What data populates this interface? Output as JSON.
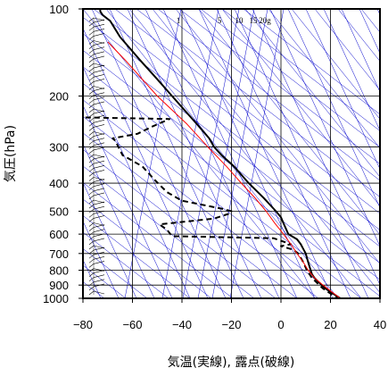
{
  "chart_data": {
    "type": "line",
    "chart_kind": "skew-T log-P emagram",
    "xlabel": "気温(実線), 露点(破線)",
    "ylabel": "気圧(hPa)",
    "xlim": [
      -80,
      40
    ],
    "ylim": [
      1000,
      100
    ],
    "y_scale": "log",
    "x_ticks": [
      -80,
      -60,
      -40,
      -20,
      0,
      20,
      40
    ],
    "y_ticks": [
      100,
      200,
      300,
      400,
      500,
      600,
      700,
      800,
      900,
      1000
    ],
    "grid": true,
    "mixing_ratio_labels": [
      "1",
      "5",
      "10",
      "15",
      "20g"
    ],
    "colors": {
      "temperature": "#000000",
      "dewpoint": "#000000",
      "parcel": "#ff0000",
      "guides": "#0000cc",
      "grid": "#000000"
    },
    "series": [
      {
        "line_style": "solid",
        "points": [
          {
            "p": 1000,
            "t": 24
          },
          {
            "p": 975,
            "t": 22
          },
          {
            "p": 950,
            "t": 20
          },
          {
            "p": 925,
            "t": 18
          },
          {
            "p": 900,
            "t": 16.5
          },
          {
            "p": 875,
            "t": 15
          },
          {
            "p": 850,
            "t": 13.5
          },
          {
            "p": 825,
            "t": 12.5
          },
          {
            "p": 800,
            "t": 12
          },
          {
            "p": 775,
            "t": 11.5
          },
          {
            "p": 750,
            "t": 11
          },
          {
            "p": 725,
            "t": 10.5
          },
          {
            "p": 700,
            "t": 10
          },
          {
            "p": 675,
            "t": 9
          },
          {
            "p": 650,
            "t": 8
          },
          {
            "p": 625,
            "t": 6.5
          },
          {
            "p": 600,
            "t": 3
          },
          {
            "p": 575,
            "t": 2
          },
          {
            "p": 550,
            "t": 1
          },
          {
            "p": 525,
            "t": 0
          },
          {
            "p": 500,
            "t": -2
          },
          {
            "p": 450,
            "t": -7
          },
          {
            "p": 400,
            "t": -13
          },
          {
            "p": 350,
            "t": -19
          },
          {
            "p": 320,
            "t": -24
          },
          {
            "p": 300,
            "t": -27
          },
          {
            "p": 280,
            "t": -29
          },
          {
            "p": 250,
            "t": -34
          },
          {
            "p": 200,
            "t": -44
          },
          {
            "p": 175,
            "t": -50
          },
          {
            "p": 150,
            "t": -57
          },
          {
            "p": 125,
            "t": -65
          },
          {
            "p": 110,
            "t": -69
          },
          {
            "p": 105,
            "t": -72
          },
          {
            "p": 102,
            "t": -73
          },
          {
            "p": 100,
            "t": -73
          }
        ]
      },
      {
        "line_style": "dashed",
        "points": [
          {
            "p": 1000,
            "t": 24
          },
          {
            "p": 975,
            "t": 21
          },
          {
            "p": 950,
            "t": 19
          },
          {
            "p": 925,
            "t": 17
          },
          {
            "p": 900,
            "t": 15.5
          },
          {
            "p": 875,
            "t": 14
          },
          {
            "p": 850,
            "t": 12.5
          },
          {
            "p": 800,
            "t": 10.5
          },
          {
            "p": 750,
            "t": 9
          },
          {
            "p": 700,
            "t": 7
          },
          {
            "p": 680,
            "t": 5
          },
          {
            "p": 660,
            "t": 0
          },
          {
            "p": 650,
            "t": 4
          },
          {
            "p": 620,
            "t": -3
          },
          {
            "p": 610,
            "t": -44
          },
          {
            "p": 580,
            "t": -46
          },
          {
            "p": 555,
            "t": -49
          },
          {
            "p": 530,
            "t": -27
          },
          {
            "p": 510,
            "t": -21
          },
          {
            "p": 500,
            "t": -20
          },
          {
            "p": 490,
            "t": -24
          },
          {
            "p": 460,
            "t": -40
          },
          {
            "p": 430,
            "t": -46
          },
          {
            "p": 390,
            "t": -51
          },
          {
            "p": 350,
            "t": -56
          },
          {
            "p": 320,
            "t": -64
          },
          {
            "p": 285,
            "t": -67
          },
          {
            "p": 280,
            "t": -68
          },
          {
            "p": 270,
            "t": -58
          },
          {
            "p": 255,
            "t": -52
          },
          {
            "p": 240,
            "t": -45
          },
          {
            "p": 237,
            "t": -81
          }
        ]
      },
      {
        "line_style": "solid",
        "color": "#ff0000",
        "points": [
          {
            "p": 1000,
            "t": 24
          },
          {
            "p": 950,
            "t": 20.5
          },
          {
            "p": 900,
            "t": 17
          },
          {
            "p": 850,
            "t": 13.5
          },
          {
            "p": 800,
            "t": 11
          },
          {
            "p": 750,
            "t": 9
          },
          {
            "p": 700,
            "t": 6.5
          },
          {
            "p": 650,
            "t": 4
          },
          {
            "p": 600,
            "t": 1
          },
          {
            "p": 550,
            "t": -2.5
          },
          {
            "p": 500,
            "t": -6
          },
          {
            "p": 450,
            "t": -10.5
          },
          {
            "p": 400,
            "t": -16
          },
          {
            "p": 350,
            "t": -22
          },
          {
            "p": 300,
            "t": -29.5
          },
          {
            "p": 250,
            "t": -38
          },
          {
            "p": 200,
            "t": -50
          },
          {
            "p": 150,
            "t": -63
          },
          {
            "p": 130,
            "t": -70
          }
        ]
      }
    ]
  }
}
